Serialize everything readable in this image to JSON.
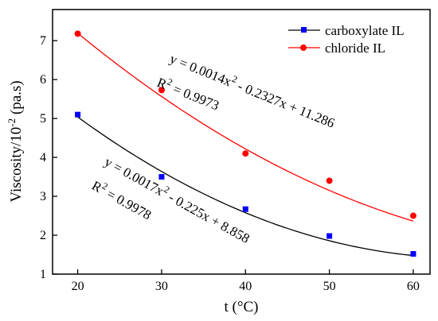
{
  "chart_data": {
    "type": "scatter",
    "xlabel": "t (°C)",
    "ylabel": {
      "prefix": "Viscosity/10",
      "sup": "-2",
      "suffix": " (pa.s)"
    },
    "xlim": [
      17,
      62
    ],
    "ylim": [
      1,
      7.8
    ],
    "x_ticks": [
      20,
      30,
      40,
      50,
      60
    ],
    "y_ticks": [
      1,
      2,
      3,
      4,
      5,
      6,
      7
    ],
    "legend_position": "top-right",
    "series": [
      {
        "name": "carboxylate IL",
        "color": "#0000ff",
        "marker": "square",
        "line_color": "#000000",
        "x": [
          20,
          30,
          40,
          50,
          60
        ],
        "y": [
          5.1,
          3.5,
          2.67,
          1.98,
          1.52
        ],
        "fit": {
          "a": 0.0017,
          "b": -0.225,
          "c": 8.858
        },
        "equation": {
          "line1": {
            "pre": "y = 0.0017x",
            "sup": "2",
            "post": " - 0.225x + 8.858"
          },
          "line2": {
            "pre": "R",
            "sup": "2",
            "post": " = 0.9978"
          }
        }
      },
      {
        "name": "chloride IL",
        "color": "#ff0000",
        "marker": "circle",
        "line_color": "#ff0000",
        "x": [
          20,
          30,
          40,
          50,
          60
        ],
        "y": [
          7.18,
          5.73,
          4.1,
          3.4,
          2.5
        ],
        "fit": {
          "a": 0.0014,
          "b": -0.2327,
          "c": 11.286
        },
        "equation": {
          "line1": {
            "pre": "y = 0.0014x",
            "sup": "2",
            "post": " - 0.2327x + 11.286"
          },
          "line2": {
            "pre": "R",
            "sup": "2",
            "post": " = 0.9973"
          }
        }
      }
    ]
  }
}
